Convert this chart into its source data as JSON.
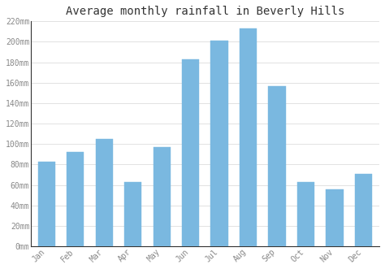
{
  "title": "Average monthly rainfall in Beverly Hills",
  "months": [
    "Jan",
    "Feb",
    "Mar",
    "Apr",
    "May",
    "Jun",
    "Jul",
    "Aug",
    "Sep",
    "Oct",
    "Nov",
    "Dec"
  ],
  "values": [
    83,
    92,
    105,
    63,
    97,
    183,
    201,
    213,
    157,
    63,
    56,
    71
  ],
  "bar_color": "#7ab8e0",
  "bar_edge_color": "#7ab8e0",
  "ylim": [
    0,
    220
  ],
  "yticks": [
    0,
    20,
    40,
    60,
    80,
    100,
    120,
    140,
    160,
    180,
    200,
    220
  ],
  "ytick_labels": [
    "0mm",
    "20mm",
    "40mm",
    "60mm",
    "80mm",
    "100mm",
    "120mm",
    "140mm",
    "160mm",
    "180mm",
    "200mm",
    "220mm"
  ],
  "background_color": "#ffffff",
  "grid_color": "#dddddd",
  "title_fontsize": 10,
  "tick_fontsize": 7,
  "title_color": "#333333",
  "tick_color": "#888888",
  "spine_color": "#333333"
}
